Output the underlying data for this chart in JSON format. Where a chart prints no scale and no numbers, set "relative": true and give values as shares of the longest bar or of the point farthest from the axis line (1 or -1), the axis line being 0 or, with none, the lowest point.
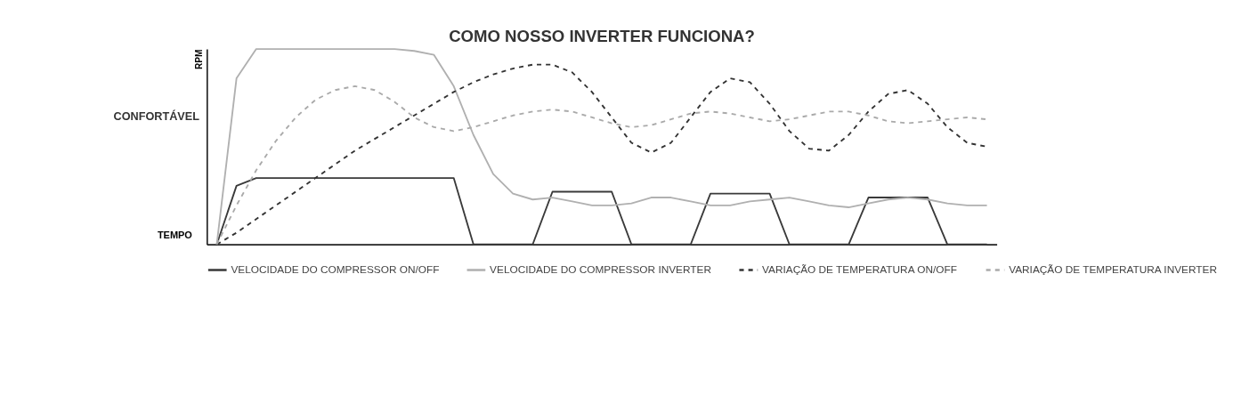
{
  "chart_data": {
    "type": "line",
    "title": "COMO NOSSO INVERTER FUNCIONA?",
    "xlabel": "TEMPO",
    "ylabel": "RPM",
    "relative": true,
    "tick_labels": false,
    "grid": false,
    "legend": "bottom",
    "annotations": [
      "CONFORTÁVEL"
    ],
    "categories": [
      null,
      null,
      null,
      null,
      null,
      null,
      null,
      null,
      null,
      null,
      null,
      null,
      null,
      null,
      null,
      null,
      null,
      null,
      null,
      null,
      null,
      null,
      null,
      null,
      null,
      null,
      null,
      null,
      null,
      null,
      null,
      null,
      null,
      null,
      null,
      null,
      null,
      null,
      null,
      null
    ],
    "series": [
      {
        "name": "VELOCIDADE DO COMPRESSOR ON/OFF",
        "color": "#3a3a3a",
        "line_style": "solid",
        "values": [
          0,
          0.3,
          0.34,
          0.34,
          0.34,
          0.34,
          0.34,
          0.34,
          0.34,
          0.34,
          0.34,
          0.34,
          0.34,
          0,
          0,
          0,
          0,
          0.27,
          0.27,
          0.27,
          0.27,
          0,
          0,
          0,
          0,
          0.26,
          0.26,
          0.26,
          0.26,
          0,
          0,
          0,
          0,
          0.24,
          0.24,
          0.24,
          0.24,
          0,
          0,
          0
        ]
      },
      {
        "name": "VELOCIDADE DO COMPRESSOR INVERTER",
        "color": "#b0b0b0",
        "line_style": "solid",
        "values": [
          0,
          0.85,
          1.0,
          1.0,
          1.0,
          1.0,
          1.0,
          1.0,
          1.0,
          1.0,
          0.99,
          0.97,
          0.81,
          0.56,
          0.36,
          0.26,
          0.23,
          0.24,
          0.22,
          0.2,
          0.2,
          0.21,
          0.24,
          0.24,
          0.22,
          0.2,
          0.2,
          0.22,
          0.23,
          0.24,
          0.22,
          0.2,
          0.19,
          0.21,
          0.23,
          0.24,
          0.23,
          0.21,
          0.2,
          0.2
        ]
      },
      {
        "name": "VARIAÇÃO DE TEMPERATURA ON/OFF",
        "color": "#333333",
        "line_style": "dashed",
        "values": [
          0,
          0.06,
          0.13,
          0.2,
          0.27,
          0.34,
          0.41,
          0.48,
          0.54,
          0.6,
          0.66,
          0.72,
          0.78,
          0.83,
          0.87,
          0.9,
          0.92,
          0.92,
          0.88,
          0.78,
          0.65,
          0.52,
          0.47,
          0.52,
          0.65,
          0.78,
          0.85,
          0.83,
          0.72,
          0.58,
          0.49,
          0.48,
          0.56,
          0.68,
          0.77,
          0.79,
          0.72,
          0.6,
          0.52,
          0.5
        ]
      },
      {
        "name": "VARIAÇÃO DE TEMPERATURA INVERTER",
        "color": "#aaaaaa",
        "line_style": "dashed",
        "values": [
          0,
          0.2,
          0.38,
          0.53,
          0.65,
          0.74,
          0.79,
          0.81,
          0.79,
          0.73,
          0.65,
          0.6,
          0.58,
          0.6,
          0.63,
          0.66,
          0.68,
          0.69,
          0.68,
          0.65,
          0.62,
          0.6,
          0.61,
          0.64,
          0.67,
          0.68,
          0.67,
          0.65,
          0.63,
          0.64,
          0.66,
          0.68,
          0.68,
          0.66,
          0.63,
          0.62,
          0.63,
          0.64,
          0.65,
          0.64
        ]
      }
    ]
  }
}
